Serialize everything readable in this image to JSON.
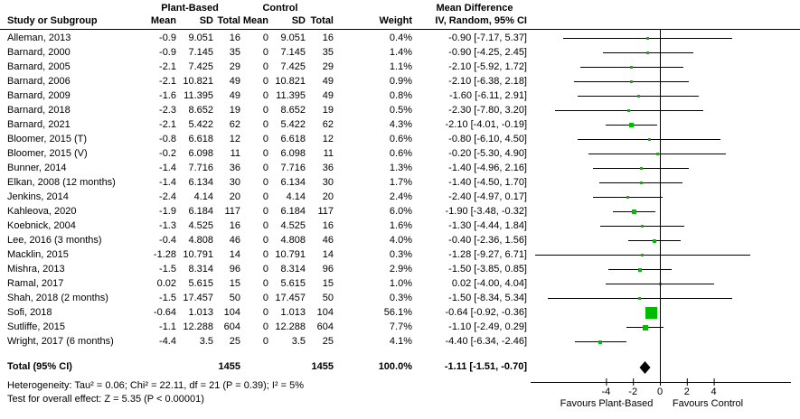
{
  "header": {
    "study_col": "Study or Subgroup",
    "group_plant": "Plant-Based",
    "group_control": "Control",
    "mean": "Mean",
    "sd": "SD",
    "total": "Total",
    "weight": "Weight",
    "md_title": "Mean Difference",
    "md_sub": "IV, Random, 95% CI",
    "plot_title": "Mean Difference",
    "plot_sub": "IV, Random, 95% CI"
  },
  "chart_data": {
    "type": "forest",
    "marker_color": "#00bb00",
    "diamond_color": "#000000",
    "studies": [
      {
        "name": "Alleman, 2013",
        "cells": [
          "-0.9",
          "9.051",
          "16",
          "0",
          "9.051",
          "16",
          "0.4%",
          "-0.90 [-7.17, 5.37]"
        ],
        "md": -0.9,
        "lo": -7.17,
        "hi": 5.37,
        "weight": 0.4
      },
      {
        "name": "Barnard, 2000",
        "cells": [
          "-0.9",
          "7.145",
          "35",
          "0",
          "7.145",
          "35",
          "1.4%",
          "-0.90 [-4.25, 2.45]"
        ],
        "md": -0.9,
        "lo": -4.25,
        "hi": 2.45,
        "weight": 1.4
      },
      {
        "name": "Barnard, 2005",
        "cells": [
          "-2.1",
          "7.425",
          "29",
          "0",
          "7.425",
          "29",
          "1.1%",
          "-2.10 [-5.92, 1.72]"
        ],
        "md": -2.1,
        "lo": -5.92,
        "hi": 1.72,
        "weight": 1.1
      },
      {
        "name": "Barnard, 2006",
        "cells": [
          "-2.1",
          "10.821",
          "49",
          "0",
          "10.821",
          "49",
          "0.9%",
          "-2.10 [-6.38, 2.18]"
        ],
        "md": -2.1,
        "lo": -6.38,
        "hi": 2.18,
        "weight": 0.9
      },
      {
        "name": "Barnard, 2009",
        "cells": [
          "-1.6",
          "11.395",
          "49",
          "0",
          "11.395",
          "49",
          "0.8%",
          "-1.60 [-6.11, 2.91]"
        ],
        "md": -1.6,
        "lo": -6.11,
        "hi": 2.91,
        "weight": 0.8
      },
      {
        "name": "Barnard, 2018",
        "cells": [
          "-2.3",
          "8.652",
          "19",
          "0",
          "8.652",
          "19",
          "0.5%",
          "-2.30 [-7.80, 3.20]"
        ],
        "md": -2.3,
        "lo": -7.8,
        "hi": 3.2,
        "weight": 0.5
      },
      {
        "name": "Barnard, 2021",
        "cells": [
          "-2.1",
          "5.422",
          "62",
          "0",
          "5.422",
          "62",
          "4.3%",
          "-2.10 [-4.01, -0.19]"
        ],
        "md": -2.1,
        "lo": -4.01,
        "hi": -0.19,
        "weight": 4.3
      },
      {
        "name": "Bloomer, 2015 (T)",
        "cells": [
          "-0.8",
          "6.618",
          "12",
          "0",
          "6.618",
          "12",
          "0.6%",
          "-0.80 [-6.10, 4.50]"
        ],
        "md": -0.8,
        "lo": -6.1,
        "hi": 4.5,
        "weight": 0.6
      },
      {
        "name": "Bloomer, 2015 (V)",
        "cells": [
          "-0.2",
          "6.098",
          "11",
          "0",
          "6.098",
          "11",
          "0.6%",
          "-0.20 [-5.30, 4.90]"
        ],
        "md": -0.2,
        "lo": -5.3,
        "hi": 4.9,
        "weight": 0.6
      },
      {
        "name": "Bunner, 2014",
        "cells": [
          "-1.4",
          "7.716",
          "36",
          "0",
          "7.716",
          "36",
          "1.3%",
          "-1.40 [-4.96, 2.16]"
        ],
        "md": -1.4,
        "lo": -4.96,
        "hi": 2.16,
        "weight": 1.3
      },
      {
        "name": "Elkan, 2008 (12 months)",
        "cells": [
          "-1.4",
          "6.134",
          "30",
          "0",
          "6.134",
          "30",
          "1.7%",
          "-1.40 [-4.50, 1.70]"
        ],
        "md": -1.4,
        "lo": -4.5,
        "hi": 1.7,
        "weight": 1.7
      },
      {
        "name": "Jenkins, 2014",
        "cells": [
          "-2.4",
          "4.14",
          "20",
          "0",
          "4.14",
          "20",
          "2.4%",
          "-2.40 [-4.97, 0.17]"
        ],
        "md": -2.4,
        "lo": -4.97,
        "hi": 0.17,
        "weight": 2.4
      },
      {
        "name": "Kahleova, 2020",
        "cells": [
          "-1.9",
          "6.184",
          "117",
          "0",
          "6.184",
          "117",
          "6.0%",
          "-1.90 [-3.48, -0.32]"
        ],
        "md": -1.9,
        "lo": -3.48,
        "hi": -0.32,
        "weight": 6.0
      },
      {
        "name": "Koebnick, 2004",
        "cells": [
          "-1.3",
          "4.525",
          "16",
          "0",
          "4.525",
          "16",
          "1.6%",
          "-1.30 [-4.44, 1.84]"
        ],
        "md": -1.3,
        "lo": -4.44,
        "hi": 1.84,
        "weight": 1.6
      },
      {
        "name": "Lee, 2016 (3 months)",
        "cells": [
          "-0.4",
          "4.808",
          "46",
          "0",
          "4.808",
          "46",
          "4.0%",
          "-0.40 [-2.36, 1.56]"
        ],
        "md": -0.4,
        "lo": -2.36,
        "hi": 1.56,
        "weight": 4.0
      },
      {
        "name": "Macklin, 2015",
        "cells": [
          "-1.28",
          "10.791",
          "14",
          "0",
          "10.791",
          "14",
          "0.3%",
          "-1.28 [-9.27, 6.71]"
        ],
        "md": -1.28,
        "lo": -9.27,
        "hi": 6.71,
        "weight": 0.3
      },
      {
        "name": "Mishra, 2013",
        "cells": [
          "-1.5",
          "8.314",
          "96",
          "0",
          "8.314",
          "96",
          "2.9%",
          "-1.50 [-3.85, 0.85]"
        ],
        "md": -1.5,
        "lo": -3.85,
        "hi": 0.85,
        "weight": 2.9
      },
      {
        "name": "Ramal, 2017",
        "cells": [
          "0.02",
          "5.615",
          "15",
          "0",
          "5.615",
          "15",
          "1.0%",
          "0.02 [-4.00, 4.04]"
        ],
        "md": 0.02,
        "lo": -4.0,
        "hi": 4.04,
        "weight": 1.0
      },
      {
        "name": "Shah, 2018 (2 months)",
        "cells": [
          "-1.5",
          "17.457",
          "50",
          "0",
          "17.457",
          "50",
          "0.3%",
          "-1.50 [-8.34, 5.34]"
        ],
        "md": -1.5,
        "lo": -8.34,
        "hi": 5.34,
        "weight": 0.3
      },
      {
        "name": "Sofi, 2018",
        "cells": [
          "-0.64",
          "1.013",
          "104",
          "0",
          "1.013",
          "104",
          "56.1%",
          "-0.64 [-0.92, -0.36]"
        ],
        "md": -0.64,
        "lo": -0.92,
        "hi": -0.36,
        "weight": 56.1
      },
      {
        "name": "Sutliffe, 2015",
        "cells": [
          "-1.1",
          "12.288",
          "604",
          "0",
          "12.288",
          "604",
          "7.7%",
          "-1.10 [-2.49, 0.29]"
        ],
        "md": -1.1,
        "lo": -2.49,
        "hi": 0.29,
        "weight": 7.7
      },
      {
        "name": "Wright, 2017 (6 months)",
        "cells": [
          "-4.4",
          "3.5",
          "25",
          "0",
          "3.5",
          "25",
          "4.1%",
          "-4.40 [-6.34, -2.46]"
        ],
        "md": -4.4,
        "lo": -6.34,
        "hi": -2.46,
        "weight": 4.1
      }
    ],
    "total": {
      "label": "Total (95% CI)",
      "n_plant": "1455",
      "n_control": "1455",
      "weight": "100.0%",
      "ci_text": "-1.11 [-1.51, -0.70]",
      "md": -1.11,
      "lo": -1.51,
      "hi": -0.7
    },
    "axis": {
      "tick_values": [
        -4,
        -2,
        0,
        2,
        4
      ],
      "tick_labels": [
        "-4",
        "-2",
        "0",
        "2",
        "4"
      ]
    },
    "favours_left": "Favours Plant-Based",
    "favours_right": "Favours Control"
  },
  "footer": {
    "heterogeneity": "Heterogeneity: Tau² = 0.06; Chi² = 22.11, df = 21 (P = 0.39); I² = 5%",
    "overall_effect": "Test for overall effect: Z = 5.35 (P < 0.00001)"
  }
}
